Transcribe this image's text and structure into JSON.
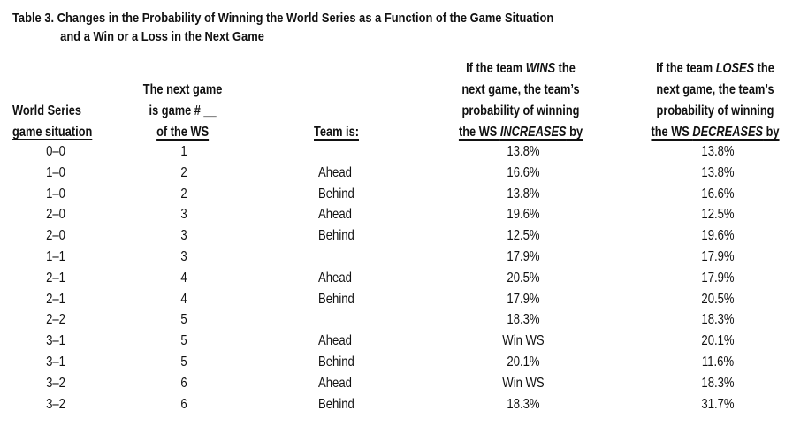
{
  "title": {
    "line1": "Table 3.  Changes in the Probability of Winning the World Series as a Function of the Game Situation",
    "line2": "and a Win or a Loss in the Next Game"
  },
  "headers": {
    "situation": [
      "World Series",
      "game situation"
    ],
    "next_game": [
      "The next game",
      "is game # __",
      "of the WS"
    ],
    "team": "Team is:",
    "wins": {
      "l1_pre": "If the team ",
      "l1_em": "WINS",
      "l1_post": " the",
      "l2": "next game, the team’s",
      "l3": "probability of winning",
      "l4_pre": "the WS ",
      "l4_em": "INCREASES",
      "l4_post": " by"
    },
    "loses": {
      "l1_pre": "If the team ",
      "l1_em": "LOSES",
      "l1_post": " the",
      "l2": "next game, the team’s",
      "l3": "probability  of winning",
      "l4_pre": "the WS ",
      "l4_em": "DECREASES",
      "l4_post": " by"
    }
  },
  "rows": [
    {
      "situation": "0–0",
      "game": "1",
      "team": "",
      "win": "13.8%",
      "lose": "13.8%"
    },
    {
      "situation": "1–0",
      "game": "2",
      "team": "Ahead",
      "win": "16.6%",
      "lose": "13.8%"
    },
    {
      "situation": "1–0",
      "game": "2",
      "team": "Behind",
      "win": "13.8%",
      "lose": "16.6%"
    },
    {
      "situation": "2–0",
      "game": "3",
      "team": "Ahead",
      "win": "19.6%",
      "lose": "12.5%"
    },
    {
      "situation": "2–0",
      "game": "3",
      "team": "Behind",
      "win": "12.5%",
      "lose": "19.6%"
    },
    {
      "situation": "1–1",
      "game": "3",
      "team": "",
      "win": "17.9%",
      "lose": "17.9%"
    },
    {
      "situation": "2–1",
      "game": "4",
      "team": "Ahead",
      "win": "20.5%",
      "lose": "17.9%"
    },
    {
      "situation": "2–1",
      "game": "4",
      "team": "Behind",
      "win": "17.9%",
      "lose": "20.5%"
    },
    {
      "situation": "2–2",
      "game": "5",
      "team": "",
      "win": "18.3%",
      "lose": "18.3%"
    },
    {
      "situation": "3–1",
      "game": "5",
      "team": "Ahead",
      "win": "Win WS",
      "lose": "20.1%"
    },
    {
      "situation": "3–1",
      "game": "5",
      "team": "Behind",
      "win": "20.1%",
      "lose": "11.6%"
    },
    {
      "situation": "3–2",
      "game": "6",
      "team": "Ahead",
      "win": "Win WS",
      "lose": "18.3%"
    },
    {
      "situation": "3–2",
      "game": "6",
      "team": "Behind",
      "win": "18.3%",
      "lose": "31.7%"
    }
  ]
}
